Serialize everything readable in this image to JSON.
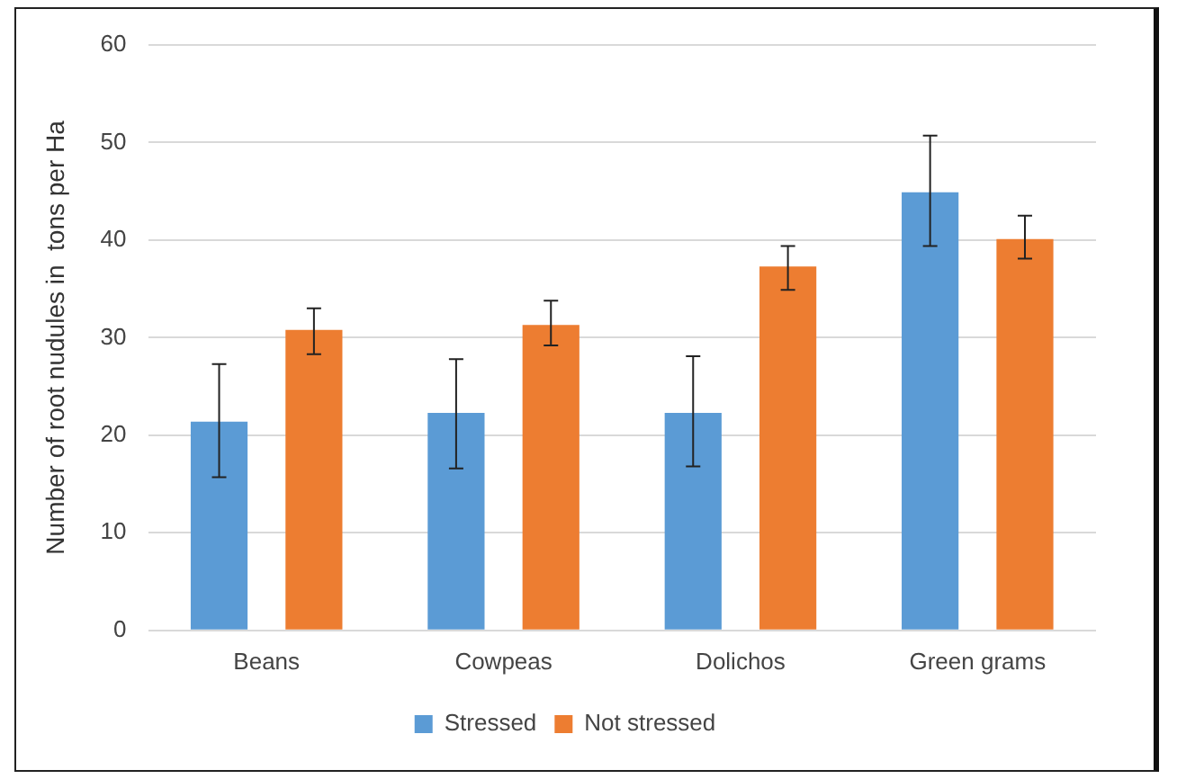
{
  "chart_data": {
    "type": "bar",
    "ylabel": "Number of root nudules in  tons per Ha",
    "categories": [
      "Beans",
      "Cowpeas",
      "Dolichos",
      "Green grams"
    ],
    "series": [
      {
        "name": "Stressed",
        "color": "#5b9bd5",
        "values": [
          21.4,
          22.3,
          22.3,
          44.9
        ],
        "errors": [
          [
            15.7,
            27.3
          ],
          [
            16.6,
            27.8
          ],
          [
            16.8,
            28.1
          ],
          [
            39.4,
            50.7
          ]
        ]
      },
      {
        "name": "Not stressed",
        "color": "#ed7d31",
        "values": [
          30.8,
          31.3,
          37.3,
          40.1
        ],
        "errors": [
          [
            28.3,
            33.0
          ],
          [
            29.2,
            33.8
          ],
          [
            34.9,
            39.4
          ],
          [
            38.1,
            42.5
          ]
        ]
      }
    ],
    "ylim": [
      0,
      60
    ],
    "yticks": [
      0,
      10,
      20,
      30,
      40,
      50,
      60
    ],
    "grid": "y",
    "legend": "bottom"
  }
}
